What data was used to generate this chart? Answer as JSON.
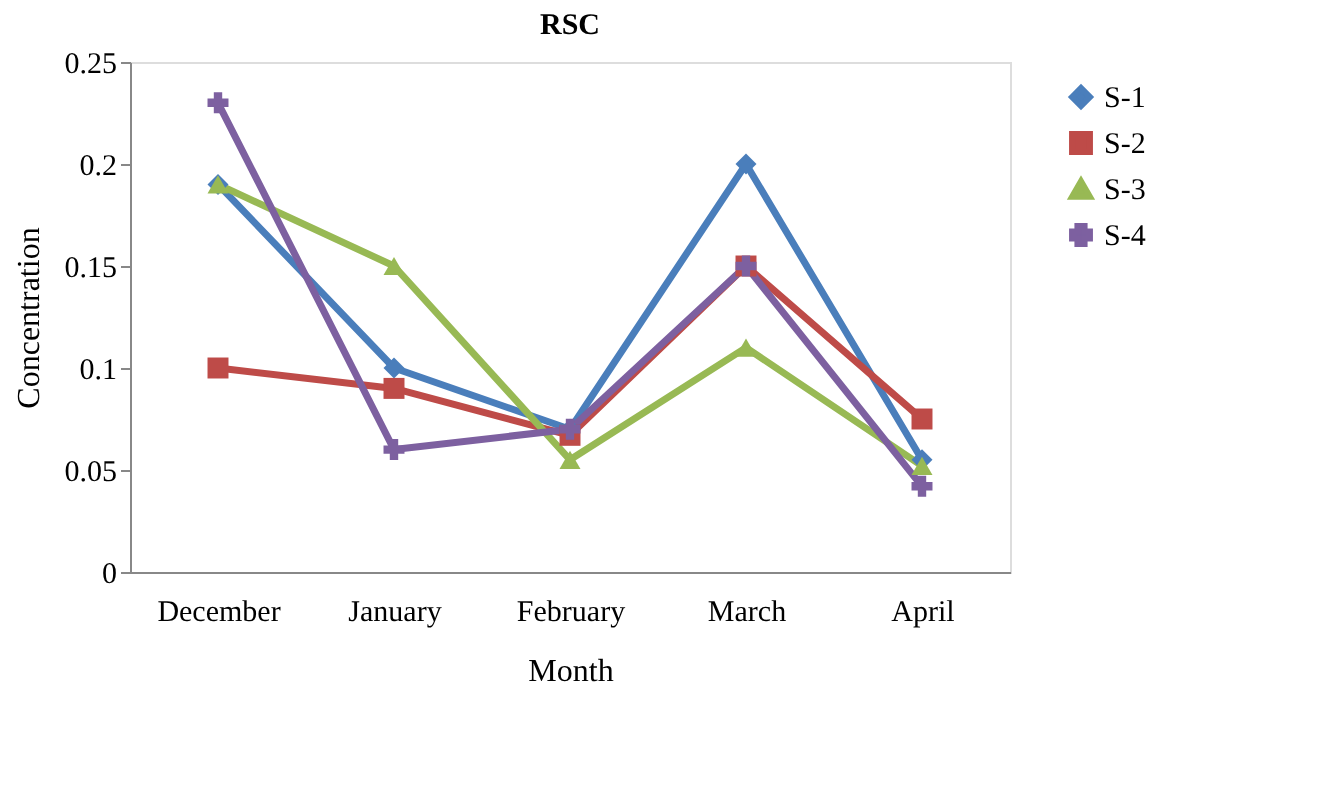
{
  "chart_data": {
    "type": "line",
    "title": "RSC",
    "xlabel": "Month",
    "ylabel": "Concentration",
    "categories": [
      "December",
      "January",
      "February",
      "March",
      "April"
    ],
    "series": [
      {
        "name": "S-1",
        "color": "#4a7ebb",
        "marker": "diamond",
        "values": [
          0.19,
          0.1,
          0.07,
          0.2,
          0.055
        ]
      },
      {
        "name": "S-2",
        "color": "#be4b48",
        "marker": "square",
        "values": [
          0.1,
          0.09,
          0.067,
          0.15,
          0.075
        ]
      },
      {
        "name": "S-3",
        "color": "#98b954",
        "marker": "triangle",
        "values": [
          0.19,
          0.15,
          0.055,
          0.11,
          0.052
        ]
      },
      {
        "name": "S-4",
        "color": "#7d60a0",
        "marker": "cross",
        "values": [
          0.23,
          0.06,
          0.07,
          0.15,
          0.042
        ]
      }
    ],
    "ylim": [
      0,
      0.25
    ],
    "yticks": [
      0,
      0.05,
      0.1,
      0.15,
      0.2,
      0.25
    ],
    "grid": false,
    "legend": "right"
  }
}
